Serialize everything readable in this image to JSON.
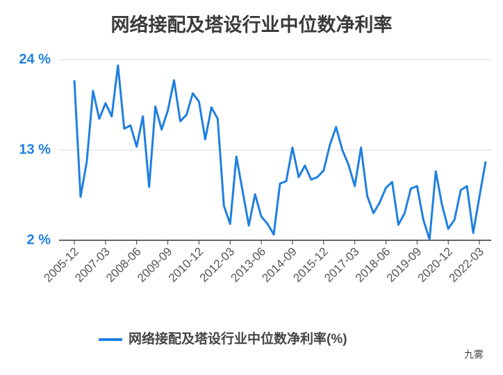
{
  "chart_data": {
    "type": "line",
    "title": "网络接配及塔设行业中位数净利率",
    "categories": [
      "2005-12",
      null,
      null,
      null,
      null,
      "2007-03",
      null,
      null,
      null,
      null,
      "2008-06",
      null,
      null,
      null,
      null,
      "2009-09",
      null,
      null,
      null,
      null,
      "2010-12",
      null,
      null,
      null,
      null,
      "2012-03",
      null,
      null,
      null,
      null,
      "2013-06",
      null,
      null,
      null,
      null,
      "2014-09",
      null,
      null,
      null,
      null,
      "2015-12",
      null,
      null,
      null,
      null,
      "2017-03",
      null,
      null,
      null,
      null,
      "2018-06",
      null,
      null,
      null,
      null,
      "2019-09",
      null,
      null,
      null,
      null,
      "2020-12",
      null,
      null,
      null,
      null,
      "2022-03",
      null
    ],
    "series": [
      {
        "name": "网络接配及塔设行业中位数净利率(%)",
        "color": "#1f7fe0",
        "values": [
          21.5,
          7.3,
          11.6,
          20.2,
          16.8,
          18.7,
          17.1,
          23.3,
          15.6,
          16.0,
          13.4,
          17.1,
          8.5,
          18.3,
          15.5,
          17.8,
          21.5,
          16.5,
          17.3,
          19.9,
          18.9,
          14.3,
          18.2,
          16.8,
          6.2,
          4.0,
          12.2,
          8.0,
          3.8,
          7.6,
          4.9,
          4.0,
          2.7,
          8.9,
          9.2,
          13.3,
          9.7,
          11.1,
          9.4,
          9.7,
          10.5,
          13.6,
          15.8,
          13.0,
          11.2,
          8.6,
          13.3,
          7.4,
          5.3,
          6.6,
          8.4,
          9.1,
          3.9,
          5.3,
          8.3,
          8.6,
          4.5,
          2.1,
          10.4,
          6.3,
          3.4,
          4.5,
          8.1,
          8.6,
          2.9,
          7.3,
          11.6
        ]
      }
    ],
    "ylim": [
      2,
      24
    ],
    "yticks": [
      {
        "value": 2,
        "label": "2 %"
      },
      {
        "value": 13,
        "label": "13 %"
      },
      {
        "value": 24,
        "label": "24 %"
      }
    ],
    "grid": true,
    "legend": "bottom"
  },
  "watermark": "九雾"
}
